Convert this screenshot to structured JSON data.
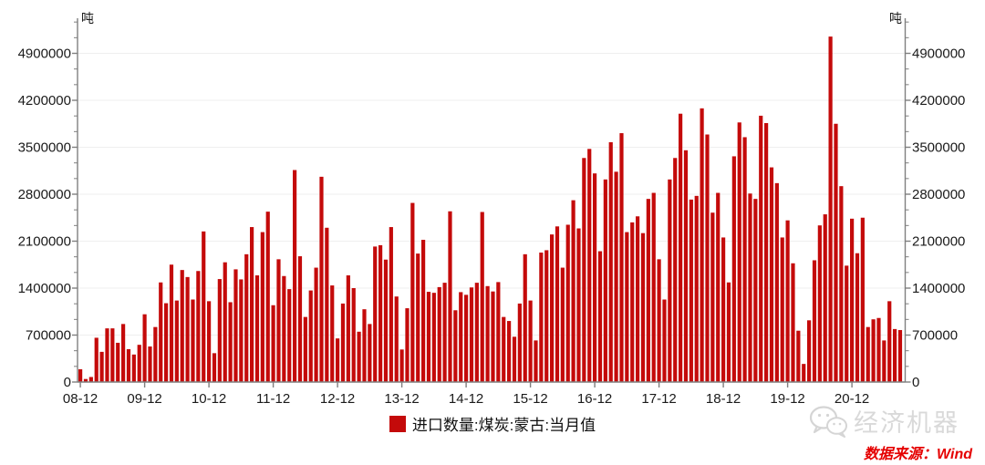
{
  "chart_data": {
    "type": "bar",
    "title": "",
    "series_name": "进口数量:煤炭:蒙古:当月值",
    "unit": "吨",
    "frequency": "monthly",
    "start_month": "2008-12",
    "end_month": "2021-09",
    "x_tick_labels": [
      "08-12",
      "09-12",
      "10-12",
      "11-12",
      "12-12",
      "13-12",
      "14-12",
      "15-12",
      "16-12",
      "17-12",
      "18-12",
      "19-12",
      "20-12"
    ],
    "x_tick_month_indices": [
      0,
      12,
      24,
      36,
      48,
      60,
      72,
      84,
      96,
      108,
      120,
      132,
      144
    ],
    "y_ticks": [
      0,
      700000,
      1400000,
      2100000,
      2800000,
      3500000,
      4200000,
      4900000
    ],
    "ylim": [
      0,
      5420000
    ],
    "grid": "horizontal-light",
    "bar_color": "#c40a0a",
    "values": [
      190000,
      45000,
      75000,
      660000,
      450000,
      800000,
      800000,
      585000,
      865000,
      490000,
      410000,
      555000,
      1010000,
      530000,
      820000,
      1485000,
      1175000,
      1750000,
      1215000,
      1670000,
      1565000,
      1230000,
      1655000,
      2245000,
      1205000,
      430000,
      1535000,
      1785000,
      1190000,
      1680000,
      1530000,
      1905000,
      2310000,
      1590000,
      2235000,
      2540000,
      1145000,
      1830000,
      1580000,
      1385000,
      3160000,
      1875000,
      970000,
      1365000,
      1705000,
      3060000,
      2300000,
      1440000,
      650000,
      1170000,
      1590000,
      1400000,
      750000,
      1085000,
      865000,
      2020000,
      2040000,
      1825000,
      2310000,
      1275000,
      485000,
      1100000,
      2670000,
      1915000,
      2120000,
      1345000,
      1330000,
      1415000,
      1480000,
      2545000,
      1070000,
      1340000,
      1300000,
      1410000,
      1480000,
      2535000,
      1430000,
      1350000,
      1490000,
      970000,
      910000,
      675000,
      1170000,
      1905000,
      1215000,
      620000,
      1930000,
      1965000,
      2200000,
      2320000,
      1705000,
      2345000,
      2710000,
      2290000,
      3340000,
      3475000,
      3110000,
      1950000,
      3020000,
      3575000,
      3135000,
      3710000,
      2235000,
      2380000,
      2470000,
      2220000,
      2730000,
      2820000,
      1830000,
      1230000,
      3020000,
      3340000,
      4000000,
      3455000,
      2720000,
      2775000,
      4080000,
      3690000,
      2525000,
      2820000,
      2155000,
      1485000,
      3365000,
      3870000,
      3650000,
      2810000,
      2730000,
      3970000,
      3860000,
      3200000,
      2965000,
      2155000,
      2410000,
      1770000,
      765000,
      270000,
      920000,
      1815000,
      2335000,
      2500000,
      5150000,
      3850000,
      2920000,
      1735000,
      2435000,
      1920000,
      2450000,
      820000,
      935000,
      955000,
      620000,
      1205000,
      790000,
      775000
    ]
  },
  "legend": {
    "label": "进口数量:煤炭:蒙古:当月值",
    "swatch_color": "#c40a0a"
  },
  "watermark": {
    "text": "经济机器",
    "icon": "wechat-icon"
  },
  "footer": {
    "source_text": "数据来源：Wind"
  },
  "colors": {
    "bar": "#c40a0a",
    "axis": "#7f7f7f",
    "gridline": "#efefef",
    "label": "#1a1a1a",
    "source_red": "#e50000",
    "watermark_gray": "#d9d9d9"
  }
}
